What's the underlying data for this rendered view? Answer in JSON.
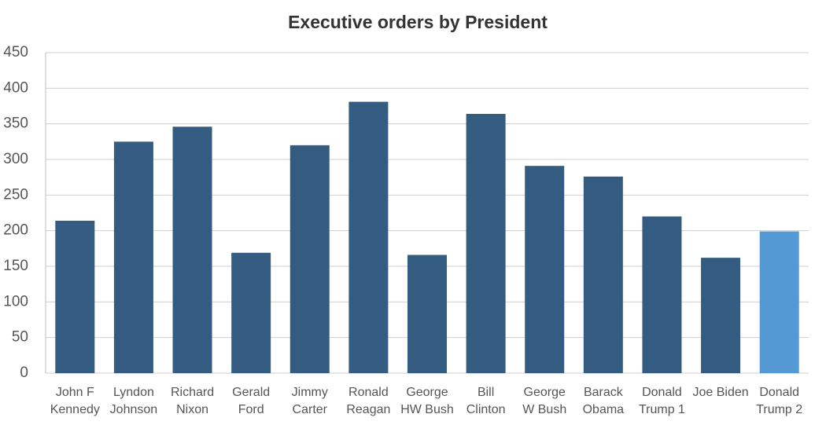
{
  "chart_data": {
    "type": "bar",
    "title": "Executive orders by President",
    "categories": [
      "John F Kennedy",
      "Lyndon Johnson",
      "Richard Nixon",
      "Gerald Ford",
      "Jimmy Carter",
      "Ronald Reagan",
      "George HW Bush",
      "Bill Clinton",
      "George W Bush",
      "Barack Obama",
      "Donald Trump 1",
      "Joe Biden",
      "Donald Trump 2"
    ],
    "values": [
      214,
      325,
      346,
      169,
      320,
      381,
      166,
      364,
      291,
      276,
      220,
      162,
      199
    ],
    "colors": [
      "#335c80",
      "#335c80",
      "#335c80",
      "#335c80",
      "#335c80",
      "#335c80",
      "#335c80",
      "#335c80",
      "#335c80",
      "#335c80",
      "#335c80",
      "#335c80",
      "#5499d4"
    ],
    "ylim": [
      0,
      450
    ],
    "yticks": [
      0,
      50,
      100,
      150,
      200,
      250,
      300,
      350,
      400,
      450
    ],
    "grid": true
  }
}
